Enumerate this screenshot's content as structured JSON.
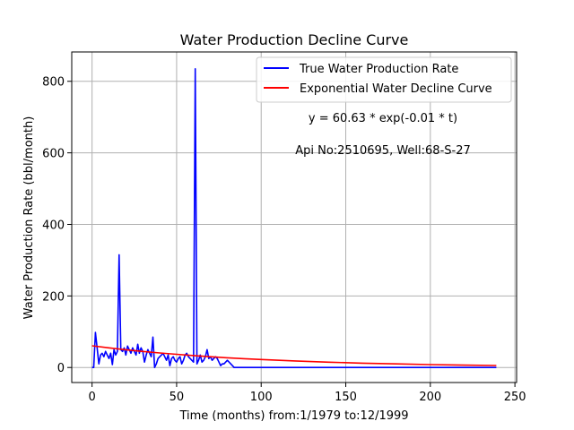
{
  "chart_data": {
    "type": "line",
    "title": "Water Production Decline Curve",
    "xlabel": "Time (months) from:1/1979 to:12/1999",
    "ylabel": "Water Production Rate (bbl/month)",
    "xlim": [
      -12,
      251
    ],
    "ylim": [
      -42,
      882
    ],
    "xticks": [
      0,
      50,
      100,
      150,
      200,
      250
    ],
    "yticks": [
      0,
      200,
      400,
      600,
      800
    ],
    "grid": true,
    "legend_position": "top-right",
    "annotations": [
      "y = 60.63 * exp(-0.01 * t)",
      "Api No:2510695, Well:68-S-27"
    ],
    "series": [
      {
        "name": "True Water Production Rate",
        "color": "#0000ff",
        "x": [
          0,
          1,
          2,
          3,
          4,
          5,
          6,
          7,
          8,
          9,
          10,
          11,
          12,
          13,
          14,
          15,
          16,
          17,
          18,
          19,
          20,
          21,
          22,
          23,
          24,
          25,
          26,
          27,
          28,
          29,
          30,
          31,
          32,
          33,
          34,
          35,
          36,
          37,
          38,
          39,
          40,
          41,
          42,
          43,
          44,
          45,
          46,
          47,
          48,
          49,
          50,
          51,
          52,
          53,
          54,
          55,
          56,
          57,
          58,
          59,
          60,
          61,
          62,
          63,
          64,
          65,
          66,
          67,
          68,
          69,
          70,
          71,
          72,
          73,
          74,
          75,
          76,
          77,
          78,
          79,
          80,
          81,
          82,
          83,
          84,
          85,
          86,
          87,
          88,
          89,
          90,
          91,
          92,
          120,
          150,
          180,
          210,
          239
        ],
        "y": [
          0,
          0,
          98,
          55,
          10,
          35,
          40,
          30,
          45,
          35,
          25,
          40,
          8,
          50,
          35,
          45,
          315,
          50,
          45,
          55,
          35,
          60,
          50,
          40,
          55,
          45,
          35,
          65,
          40,
          55,
          45,
          15,
          35,
          50,
          40,
          30,
          85,
          0,
          10,
          25,
          30,
          35,
          40,
          30,
          20,
          35,
          5,
          25,
          30,
          20,
          15,
          25,
          30,
          10,
          20,
          35,
          40,
          30,
          25,
          20,
          15,
          835,
          10,
          20,
          35,
          15,
          20,
          30,
          50,
          25,
          30,
          20,
          25,
          30,
          25,
          15,
          5,
          10,
          10,
          15,
          20,
          15,
          10,
          5,
          0,
          0,
          0,
          0,
          0,
          0,
          0,
          0,
          0,
          0,
          0,
          0,
          0,
          0
        ]
      },
      {
        "name": "Exponential Water Decline Curve",
        "color": "#ff0000",
        "function": "60.63 * exp(-0.01 * t)",
        "x": [
          0,
          10,
          20,
          30,
          40,
          50,
          60,
          70,
          80,
          90,
          100,
          120,
          140,
          160,
          180,
          200,
          220,
          239
        ],
        "y": [
          60.6,
          54.9,
          49.6,
          44.9,
          40.6,
          36.8,
          33.3,
          30.1,
          27.2,
          24.6,
          22.3,
          18.3,
          14.9,
          12.2,
          10.0,
          8.2,
          6.7,
          5.5
        ]
      }
    ]
  }
}
